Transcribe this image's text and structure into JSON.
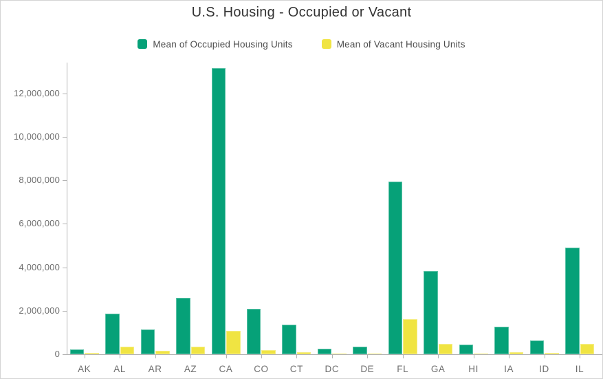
{
  "frame": {
    "background": "#ffffff",
    "border_color": "#d4d4d4"
  },
  "colors": {
    "axis": "#b3b3b3",
    "axis_text": "#6e6e6e",
    "title_text": "#333333",
    "legend_text": "#4c4c4c"
  },
  "chart_data": {
    "type": "bar",
    "bar_orientation": "vertical",
    "title": "U.S. Housing - Occupied or Vacant",
    "xlabel": "",
    "ylabel": "",
    "grid": false,
    "legend_position": "top",
    "categories": [
      "AK",
      "AL",
      "AR",
      "AZ",
      "CA",
      "CO",
      "CT",
      "DC",
      "DE",
      "FL",
      "GA",
      "HI",
      "IA",
      "ID",
      "IL"
    ],
    "series": [
      {
        "name": "Mean of Occupied Housing Units",
        "color": "#06a178",
        "values": [
          230000,
          1870000,
          1150000,
          2600000,
          13150000,
          2100000,
          1360000,
          260000,
          340000,
          7950000,
          3820000,
          440000,
          1260000,
          620000,
          4900000
        ]
      },
      {
        "name": "Mean of Vacant Housing Units",
        "color": "#f0e442",
        "values": [
          55000,
          350000,
          165000,
          360000,
          1080000,
          190000,
          110000,
          25000,
          40000,
          1600000,
          465000,
          45000,
          110000,
          60000,
          470000
        ]
      }
    ],
    "y_axis": {
      "min": 0,
      "max": 13360000,
      "tick_step": 2000000,
      "tick_labels": [
        "0",
        "2,000,000",
        "4,000,000",
        "6,000,000",
        "8,000,000",
        "10,000,000",
        "12,000,000"
      ]
    }
  }
}
